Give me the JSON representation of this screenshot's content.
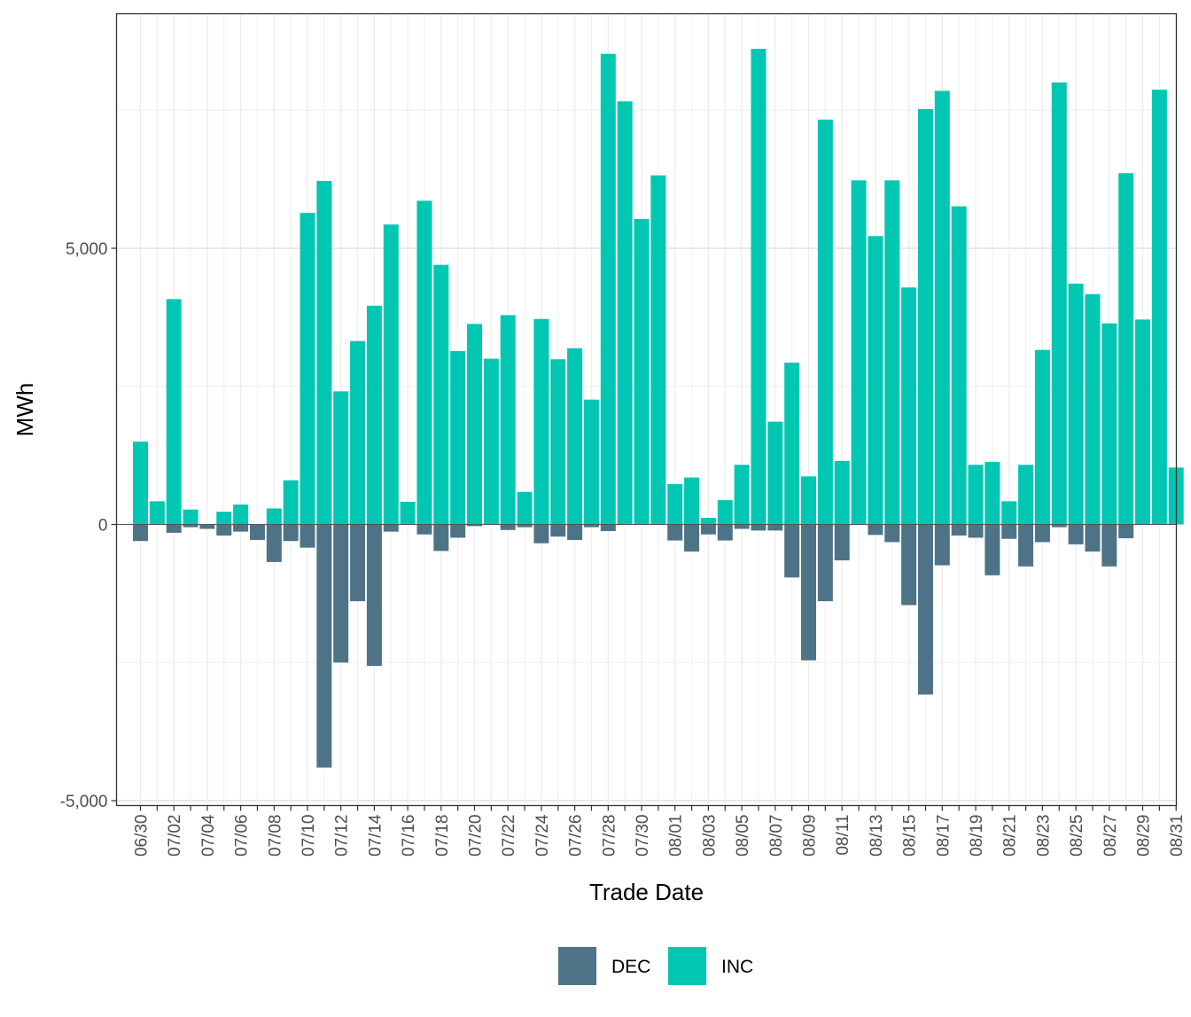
{
  "chart_data": {
    "type": "bar",
    "xlabel": "Trade Date",
    "ylabel": "MWh",
    "ylim": [
      -5000,
      9300
    ],
    "y_ticks": [
      -5000,
      0,
      5000
    ],
    "y_tick_labels": [
      "-5,000",
      "0",
      "5,000"
    ],
    "grid": true,
    "legend": {
      "placement": "bottom",
      "entries": [
        {
          "name": "DEC",
          "color": "#4e7387"
        },
        {
          "name": "INC",
          "color": "#00c7b2"
        }
      ]
    },
    "x_tick_labels": [
      "06/30",
      "07/02",
      "07/04",
      "07/06",
      "07/08",
      "07/10",
      "07/12",
      "07/14",
      "07/16",
      "07/18",
      "07/20",
      "07/22",
      "07/24",
      "07/26",
      "07/28",
      "07/30",
      "08/01",
      "08/03",
      "08/05",
      "08/07",
      "08/09",
      "08/11",
      "08/13",
      "08/15",
      "08/17",
      "08/19",
      "08/21",
      "08/23",
      "08/25",
      "08/27",
      "08/29",
      "08/31"
    ],
    "categories": [
      "06/30",
      "07/01",
      "07/02",
      "07/03",
      "07/04",
      "07/05",
      "07/06",
      "07/07",
      "07/08",
      "07/09",
      "07/10",
      "07/11",
      "07/12",
      "07/13",
      "07/14",
      "07/15",
      "07/16",
      "07/17",
      "07/18",
      "07/19",
      "07/20",
      "07/21",
      "07/22",
      "07/23",
      "07/24",
      "07/25",
      "07/26",
      "07/27",
      "07/28",
      "07/29",
      "07/30",
      "07/31",
      "08/01",
      "08/02",
      "08/03",
      "08/04",
      "08/05",
      "08/06",
      "08/07",
      "08/08",
      "08/09",
      "08/10",
      "08/11",
      "08/12",
      "08/13",
      "08/14",
      "08/15",
      "08/16",
      "08/17",
      "08/18",
      "08/19",
      "08/20",
      "08/21",
      "08/22",
      "08/23",
      "08/24",
      "08/25",
      "08/26",
      "08/27",
      "08/28",
      "08/29",
      "08/30",
      "08/31"
    ],
    "series": [
      {
        "name": "DEC",
        "color": "#4e7387",
        "values": [
          -300,
          0,
          -150,
          -50,
          -80,
          -200,
          -130,
          -280,
          -680,
          -300,
          -420,
          -4400,
          -2500,
          -1390,
          -2560,
          -130,
          0,
          -180,
          -480,
          -240,
          -30,
          0,
          -100,
          -50,
          -340,
          -220,
          -280,
          -50,
          -120,
          0,
          0,
          0,
          -290,
          -490,
          -180,
          -290,
          -80,
          -110,
          -110,
          -960,
          -2460,
          -1390,
          -650,
          0,
          -190,
          -320,
          -1460,
          -3080,
          -740,
          -200,
          -240,
          -920,
          -260,
          -760,
          -320,
          -50,
          -360,
          -490,
          -760,
          -250,
          0,
          0,
          0
        ]
      },
      {
        "name": "INC",
        "color": "#00c7b2",
        "values": [
          1500,
          420,
          4080,
          270,
          0,
          230,
          360,
          0,
          290,
          800,
          5640,
          6220,
          2410,
          3320,
          3960,
          5430,
          410,
          5860,
          4700,
          3140,
          3630,
          3000,
          3790,
          590,
          3720,
          2990,
          3190,
          2260,
          8520,
          7660,
          5530,
          6320,
          730,
          850,
          120,
          440,
          1080,
          8610,
          1860,
          2930,
          870,
          7330,
          1150,
          6230,
          5220,
          6230,
          4290,
          7520,
          7850,
          5760,
          1080,
          1130,
          420,
          1080,
          3160,
          8000,
          4360,
          4170,
          3640,
          6360,
          3710,
          7870,
          1030
        ]
      }
    ]
  }
}
